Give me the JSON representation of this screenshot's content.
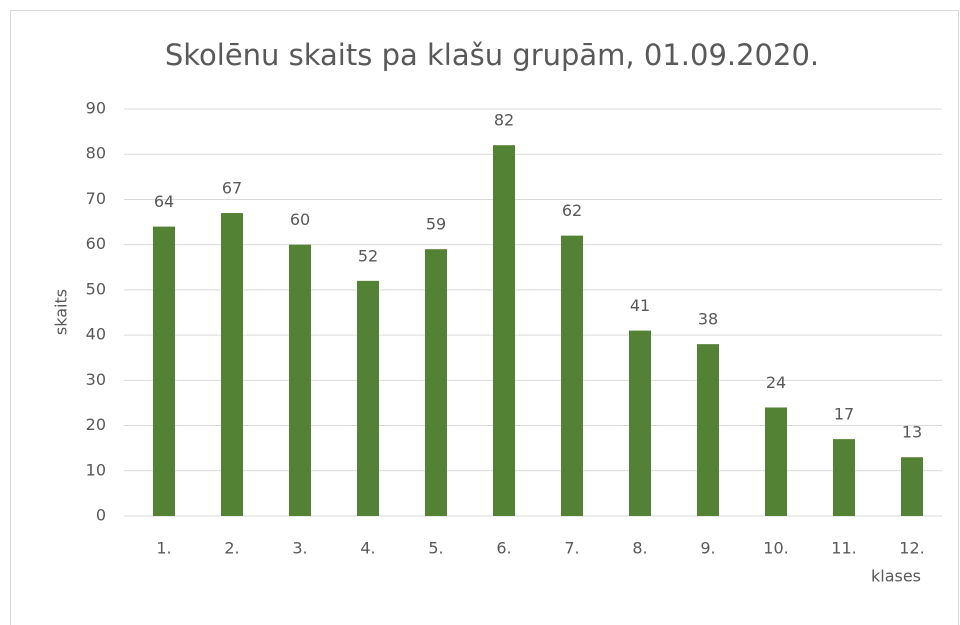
{
  "chart_data": {
    "type": "bar",
    "title": "Skolēnu skaits pa klašu grupām,  01.09.2020.",
    "ylabel": "skaits",
    "xlabel": "klases",
    "categories": [
      "1.",
      "2.",
      "3.",
      "4.",
      "5.",
      "6.",
      "7.",
      "8.",
      "9.",
      "10.",
      "11.",
      "12."
    ],
    "values": [
      64,
      67,
      60,
      52,
      59,
      82,
      62,
      41,
      38,
      24,
      17,
      13
    ],
    "color": "#548235",
    "ylim": [
      0,
      90
    ],
    "yticks": [
      0,
      10,
      20,
      30,
      40,
      50,
      60,
      70,
      80,
      90
    ],
    "grid": true
  }
}
